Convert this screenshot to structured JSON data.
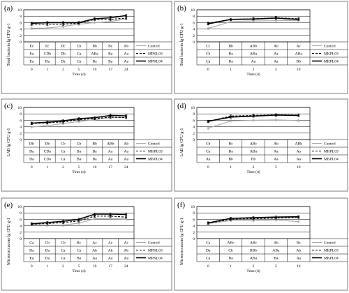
{
  "chart_data": [
    {
      "panel": "(a)",
      "type": "line",
      "ylabel": "Total bacteria lg CFU g-1",
      "xlabel": "Time (d)",
      "x": [
        "0",
        "1",
        "2",
        "5",
        "10",
        "17",
        "24"
      ],
      "ylim": [
        0,
        10
      ],
      "yticks": [
        "0",
        "2",
        "4",
        "6",
        "8",
        "10"
      ],
      "series": [
        {
          "name": "Contorl",
          "values": [
            4.2,
            4.3,
            4.8,
            5.5,
            6.0,
            6.3,
            7.2
          ],
          "color": "#aaaaaa",
          "style": "solid",
          "letters": [
            "Ec",
            "Ec",
            "Dc",
            "Cb",
            "Bb",
            "Bc",
            "Ab"
          ]
        },
        {
          "name": "MPKL03",
          "values": [
            5.5,
            5.5,
            5.5,
            5.8,
            7.0,
            7.0,
            7.4
          ],
          "color": "#000000",
          "style": "dashed",
          "letters": [
            "Ea",
            "CDb",
            "Db",
            "Ca",
            "ABa",
            "Ba",
            "Aa"
          ]
        },
        {
          "name": "MPKL04",
          "values": [
            5.8,
            6.0,
            6.0,
            6.0,
            7.2,
            7.5,
            8.2
          ],
          "color": "#000000",
          "style": "solid",
          "letters": [
            "Ea",
            "Da",
            "Da",
            "Ca",
            "Ba",
            "Ba",
            "Aa"
          ]
        }
      ]
    },
    {
      "panel": "(b)",
      "type": "line",
      "ylabel": "Total bacteria lg CFU g-1",
      "xlabel": "Time (d)",
      "x": [
        "0",
        "1",
        "2",
        "5",
        "10"
      ],
      "ylim": [
        0,
        10
      ],
      "yticks": [
        "0",
        "2",
        "4",
        "6",
        "8",
        "10"
      ],
      "series": [
        {
          "name": "Contorl",
          "values": [
            4.2,
            6.3,
            6.5,
            6.6,
            6.7
          ],
          "color": "#aaaaaa",
          "style": "solid",
          "letters": [
            "Cc",
            "Bb",
            "ABb",
            "Ab",
            "Ac"
          ]
        },
        {
          "name": "MKPL03",
          "values": [
            5.8,
            7.0,
            7.2,
            7.5,
            7.2
          ],
          "color": "#000000",
          "style": "dashed",
          "letters": [
            "Cb",
            "Ba",
            "ABa",
            "Aa",
            "ABa"
          ]
        },
        {
          "name": "MKPL04",
          "values": [
            5.6,
            7.0,
            7.1,
            7.4,
            7.0
          ],
          "color": "#000000",
          "style": "solid",
          "letters": [
            "Ca",
            "Ba",
            "Aa",
            "Aa",
            "Bb"
          ]
        }
      ]
    },
    {
      "panel": "(c)",
      "type": "line",
      "ylabel": "LAB lg CFU g-1",
      "xlabel": "Time (d)",
      "x": [
        "0",
        "1",
        "2",
        "5",
        "10",
        "17",
        "24"
      ],
      "ylim": [
        0,
        10
      ],
      "yticks": [
        "0",
        "2",
        "4",
        "6",
        "8",
        "10"
      ],
      "series": [
        {
          "name": "Contorl",
          "values": [
            3.9,
            4.3,
            5.0,
            5.6,
            6.2,
            6.8,
            6.9
          ],
          "color": "#aaaaaa",
          "style": "solid",
          "letters": [
            "Db",
            "Db",
            "Cb",
            "Cb",
            "Bb",
            "ABb",
            "Ab"
          ]
        },
        {
          "name": "MKPL03",
          "values": [
            5.0,
            5.2,
            5.5,
            6.2,
            6.5,
            7.0,
            6.8
          ],
          "color": "#000000",
          "style": "dashed",
          "letters": [
            "Da",
            "CDa",
            "Ca",
            "Ba",
            "Ba",
            "Aa",
            "Aa"
          ]
        },
        {
          "name": "MKPL04",
          "values": [
            5.1,
            5.4,
            5.8,
            6.5,
            6.8,
            7.5,
            7.4
          ],
          "color": "#000000",
          "style": "solid",
          "letters": [
            "Da",
            "CDa",
            "Ca",
            "Ba",
            "Ba",
            "Aa",
            "Aa"
          ]
        }
      ]
    },
    {
      "panel": "(d)",
      "type": "line",
      "ylabel": "LAB lg CFU g-1",
      "xlabel": "Time (d)",
      "x": [
        "0",
        "1",
        "2",
        "5",
        "10"
      ],
      "ylim": [
        0,
        10
      ],
      "yticks": [
        "0",
        "2",
        "4",
        "6",
        "8",
        "10"
      ],
      "series": [
        {
          "name": "Contorl",
          "values": [
            3.5,
            5.8,
            6.0,
            6.1,
            5.9
          ],
          "color": "#aaaaaa",
          "style": "solid",
          "letters": [
            "Cb",
            "Bc",
            "ABc",
            "Ab",
            "ABb"
          ]
        },
        {
          "name": "MKPL03",
          "values": [
            5.6,
            7.3,
            7.5,
            7.7,
            7.6
          ],
          "color": "#000000",
          "style": "dashed",
          "letters": [
            "Ca",
            "Ba",
            "ABa",
            "Aa",
            "Aa"
          ]
        },
        {
          "name": "MKPL04",
          "values": [
            5.7,
            7.0,
            7.3,
            7.6,
            7.5
          ],
          "color": "#000000",
          "style": "solid",
          "letters": [
            "Aa",
            "Bb",
            "Bb",
            "Aa",
            "Aa"
          ]
        }
      ]
    },
    {
      "panel": "(e)",
      "type": "line",
      "ylabel": "Micrococcaceae lg CFU g-1",
      "xlabel": "Time (d)",
      "x": [
        "0",
        "1",
        "2",
        "5",
        "10",
        "17",
        "24"
      ],
      "ylim": [
        0,
        10
      ],
      "yticks": [
        "0",
        "2",
        "4",
        "6",
        "8",
        "10"
      ],
      "series": [
        {
          "name": "Contorl",
          "values": [
            4.3,
            4.2,
            4.2,
            4.8,
            6.2,
            6.2,
            6.1
          ],
          "color": "#aaaaaa",
          "style": "solid",
          "letters": [
            "Ca",
            "Cb",
            "Cb",
            "Bc",
            "Ac",
            "Ac",
            "Ac"
          ]
        },
        {
          "name": "MPKL03",
          "values": [
            4.5,
            4.7,
            5.0,
            5.5,
            7.0,
            7.0,
            6.7
          ],
          "color": "#000000",
          "style": "dashed",
          "letters": [
            "Da",
            "Da",
            "Ca",
            "Ca",
            "Ab",
            "Ab",
            "Ab"
          ]
        },
        {
          "name": "MPKL04",
          "values": [
            4.6,
            5.0,
            5.4,
            6.0,
            7.6,
            7.6,
            7.5
          ],
          "color": "#000000",
          "style": "solid",
          "letters": [
            "Ea",
            "Da",
            "Ca",
            "Ba",
            "Aa",
            "Aa",
            "Aa"
          ]
        }
      ]
    },
    {
      "panel": "(f)",
      "type": "line",
      "ylabel": "Micrococcaceae lg CFU g-1",
      "xlabel": "Time (d)",
      "x": [
        "0",
        "1",
        "2",
        "5",
        "10"
      ],
      "ylim": [
        0,
        10
      ],
      "yticks": [
        "0",
        "2",
        "4",
        "6",
        "8",
        "10"
      ],
      "series": [
        {
          "name": "Contorl",
          "values": [
            4.7,
            5.6,
            5.6,
            5.8,
            5.3
          ],
          "color": "#aaaaaa",
          "style": "solid",
          "letters": [
            "Ca",
            "ABc",
            "ABc",
            "Ab",
            "Bc"
          ]
        },
        {
          "name": "MKPL03",
          "values": [
            4.8,
            6.0,
            6.2,
            6.4,
            6.6
          ],
          "color": "#000000",
          "style": "dashed",
          "letters": [
            "Da",
            "Cb",
            "BBb",
            "ABa",
            "Ab"
          ]
        },
        {
          "name": "MKPL04",
          "values": [
            4.9,
            6.3,
            6.5,
            6.7,
            6.8
          ],
          "color": "#000000",
          "style": "solid",
          "letters": [
            "Ca",
            "Ba",
            "ABa",
            "Ba",
            "Aa"
          ]
        }
      ]
    }
  ]
}
